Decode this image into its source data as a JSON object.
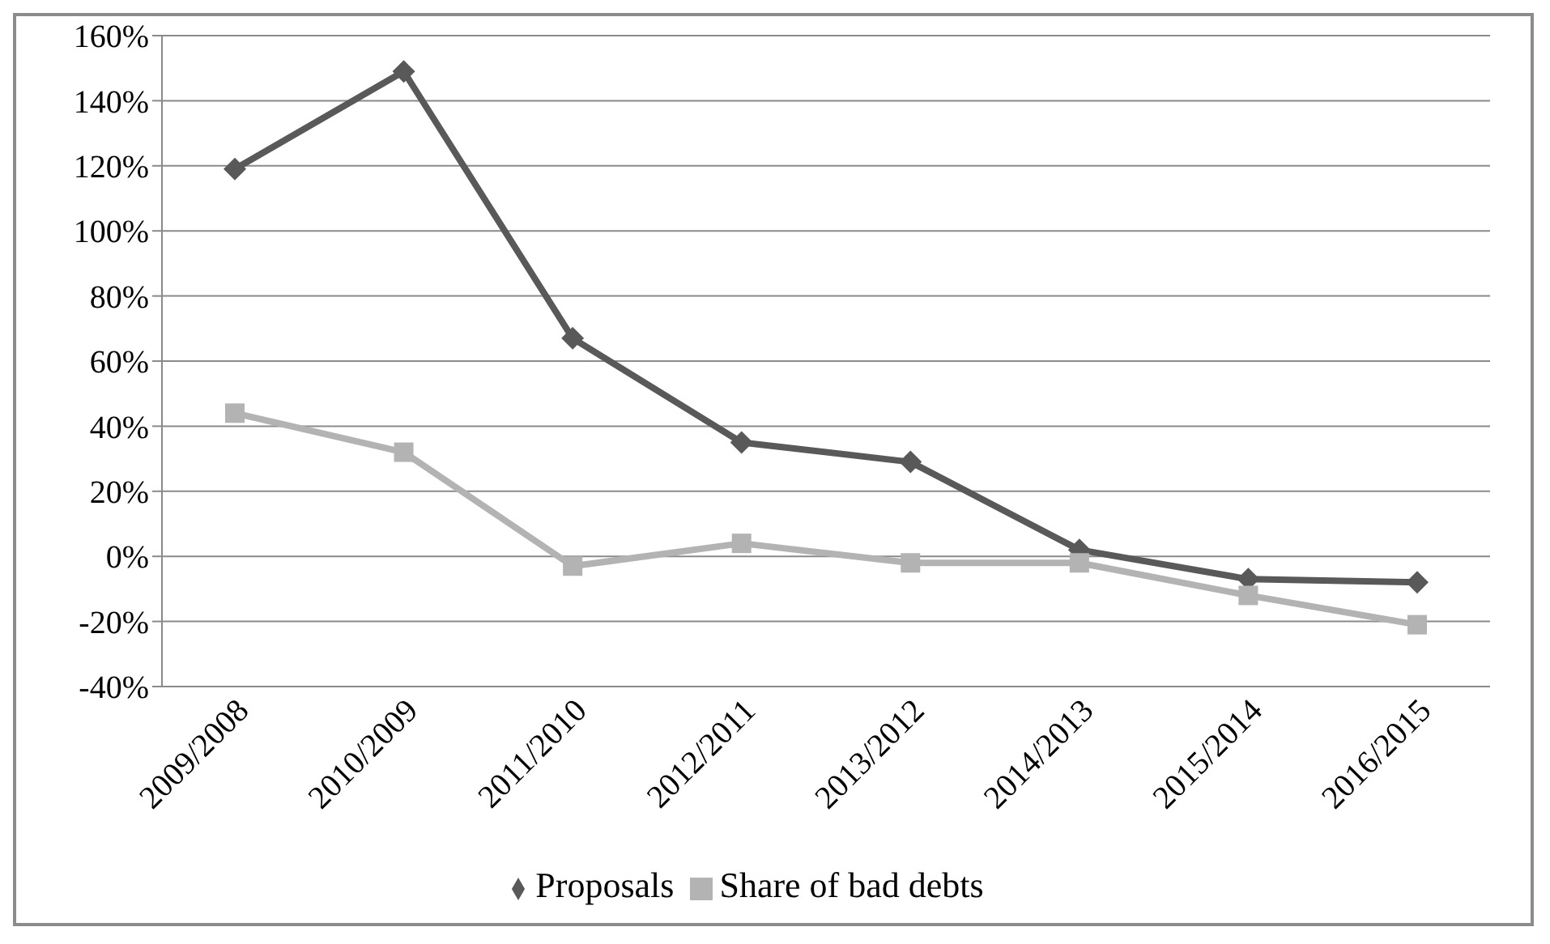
{
  "chart_data": {
    "type": "line",
    "categories": [
      "2009/2008",
      "2010/2009",
      "2011/2010",
      "2012/2011",
      "2013/2012",
      "2014/2013",
      "2015/2014",
      "2016/2015"
    ],
    "series": [
      {
        "name": "Proposals",
        "color": "#595959",
        "marker": "diamond",
        "values": [
          119,
          149,
          67,
          35,
          29,
          2,
          -7,
          -8
        ]
      },
      {
        "name": "Share of bad debts",
        "color": "#b3b3b3",
        "marker": "square",
        "values": [
          44,
          32,
          -3,
          4,
          -2,
          -2,
          -12,
          -21
        ]
      }
    ],
    "ylim": [
      -40,
      160
    ],
    "yticks": [
      {
        "value": -40,
        "label": "-40%"
      },
      {
        "value": -20,
        "label": "-20%"
      },
      {
        "value": 0,
        "label": "0%"
      },
      {
        "value": 20,
        "label": "20%"
      },
      {
        "value": 40,
        "label": "40%"
      },
      {
        "value": 60,
        "label": "60%"
      },
      {
        "value": 80,
        "label": "80%"
      },
      {
        "value": 100,
        "label": "100%"
      },
      {
        "value": 120,
        "label": "120%"
      },
      {
        "value": 140,
        "label": "140%"
      },
      {
        "value": 160,
        "label": "160%"
      }
    ],
    "grid": "y",
    "legend": "bottom",
    "line_style": "solid"
  }
}
